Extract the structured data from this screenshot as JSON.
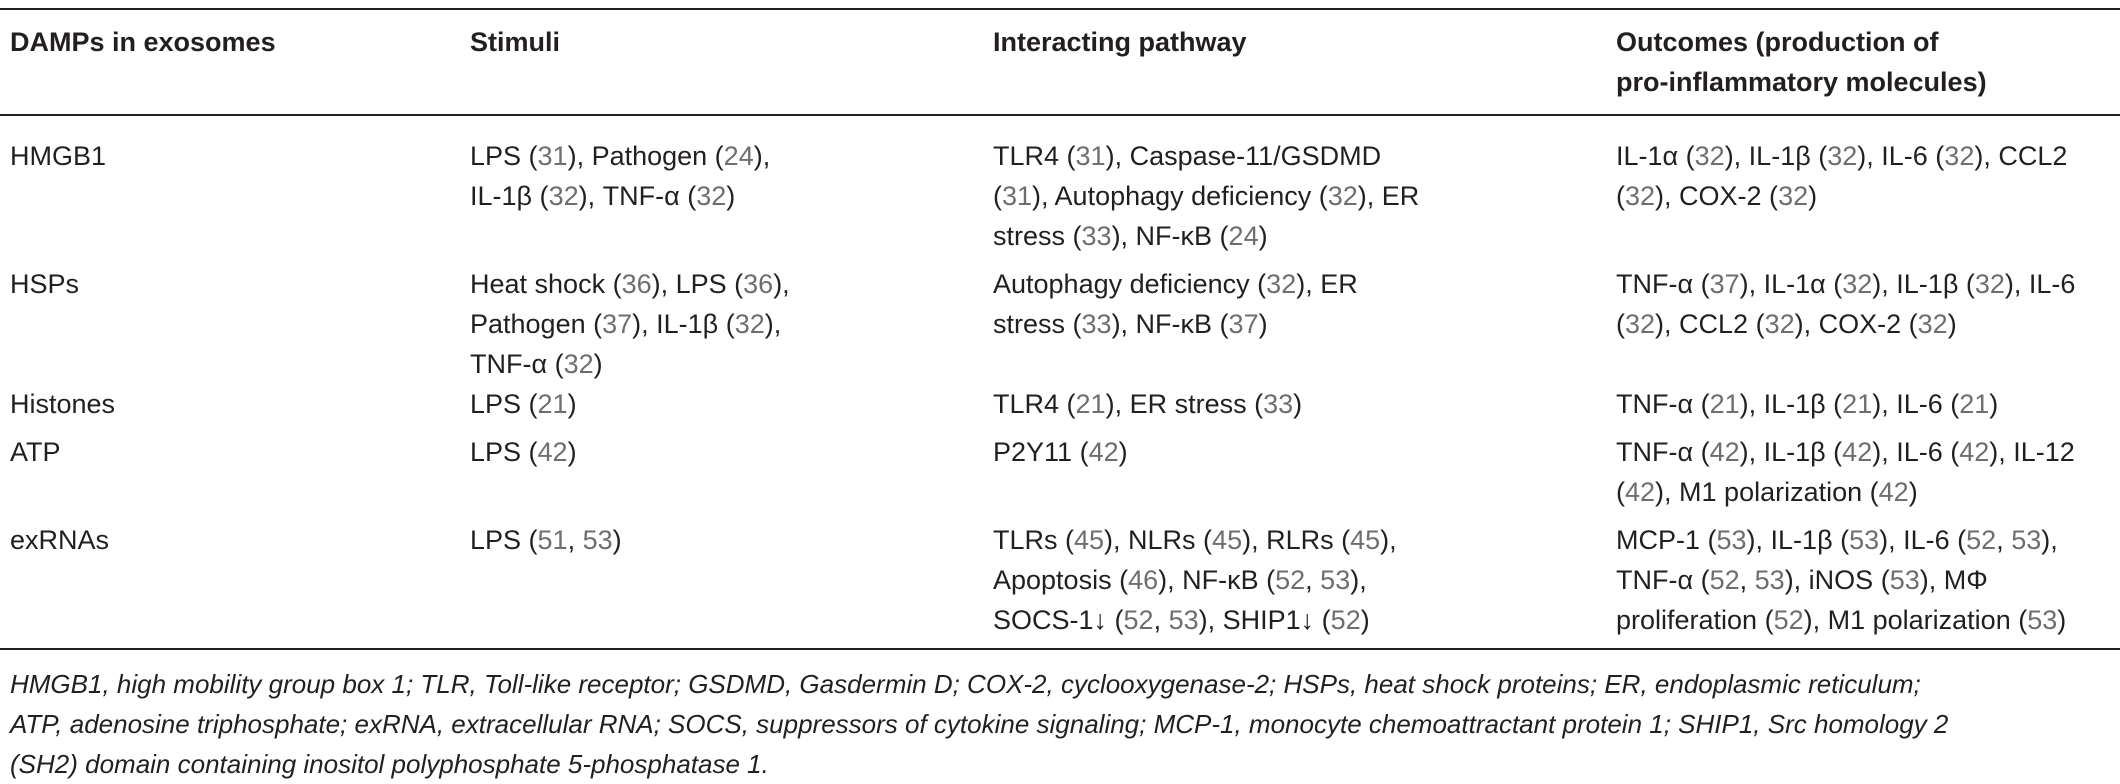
{
  "headers": {
    "col1": "DAMPs in exosomes",
    "col2": "Stimuli",
    "col3": "Interacting pathway",
    "col4_line1": "Outcomes (production of",
    "col4_line2": "pro-inflammatory molecules)"
  },
  "rows": [
    {
      "damp": "HMGB1",
      "stimuli": [
        [
          {
            "t": "LPS ("
          },
          {
            "r": "31"
          },
          {
            "t": "), Pathogen ("
          },
          {
            "r": "24"
          },
          {
            "t": "),"
          }
        ],
        [
          {
            "t": "IL-1β ("
          },
          {
            "r": "32"
          },
          {
            "t": "), TNF-α ("
          },
          {
            "r": "32"
          },
          {
            "t": ")"
          }
        ]
      ],
      "pathway": [
        [
          {
            "t": "TLR4 ("
          },
          {
            "r": "31"
          },
          {
            "t": "), Caspase-11/GSDMD"
          }
        ],
        [
          {
            "t": "("
          },
          {
            "r": "31"
          },
          {
            "t": "), Autophagy deficiency ("
          },
          {
            "r": "32"
          },
          {
            "t": "), ER"
          }
        ],
        [
          {
            "t": "stress ("
          },
          {
            "r": "33"
          },
          {
            "t": "), NF-κB ("
          },
          {
            "r": "24"
          },
          {
            "t": ")"
          }
        ]
      ],
      "outcomes": [
        [
          {
            "t": "IL-1α ("
          },
          {
            "r": "32"
          },
          {
            "t": "), IL-1β ("
          },
          {
            "r": "32"
          },
          {
            "t": "), IL-6 ("
          },
          {
            "r": "32"
          },
          {
            "t": "), CCL2"
          }
        ],
        [
          {
            "t": "("
          },
          {
            "r": "32"
          },
          {
            "t": "), COX-2 ("
          },
          {
            "r": "32"
          },
          {
            "t": ")"
          }
        ]
      ]
    },
    {
      "damp": "HSPs",
      "stimuli": [
        [
          {
            "t": "Heat shock ("
          },
          {
            "r": "36"
          },
          {
            "t": "), LPS ("
          },
          {
            "r": "36"
          },
          {
            "t": "),"
          }
        ],
        [
          {
            "t": "Pathogen ("
          },
          {
            "r": "37"
          },
          {
            "t": "), IL-1β ("
          },
          {
            "r": "32"
          },
          {
            "t": "),"
          }
        ],
        [
          {
            "t": "TNF-α ("
          },
          {
            "r": "32"
          },
          {
            "t": ")"
          }
        ]
      ],
      "pathway": [
        [
          {
            "t": "Autophagy deficiency ("
          },
          {
            "r": "32"
          },
          {
            "t": "), ER"
          }
        ],
        [
          {
            "t": "stress ("
          },
          {
            "r": "33"
          },
          {
            "t": "), NF-κB ("
          },
          {
            "r": "37"
          },
          {
            "t": ")"
          }
        ]
      ],
      "outcomes": [
        [
          {
            "t": "TNF-α ("
          },
          {
            "r": "37"
          },
          {
            "t": "), IL-1α ("
          },
          {
            "r": "32"
          },
          {
            "t": "), IL-1β ("
          },
          {
            "r": "32"
          },
          {
            "t": "), IL-6"
          }
        ],
        [
          {
            "t": "("
          },
          {
            "r": "32"
          },
          {
            "t": "), CCL2 ("
          },
          {
            "r": "32"
          },
          {
            "t": "), COX-2 ("
          },
          {
            "r": "32"
          },
          {
            "t": ")"
          }
        ]
      ]
    },
    {
      "damp": "Histones",
      "stimuli": [
        [
          {
            "t": "LPS ("
          },
          {
            "r": "21"
          },
          {
            "t": ")"
          }
        ]
      ],
      "pathway": [
        [
          {
            "t": "TLR4 ("
          },
          {
            "r": "21"
          },
          {
            "t": "), ER stress ("
          },
          {
            "r": "33"
          },
          {
            "t": ")"
          }
        ]
      ],
      "outcomes": [
        [
          {
            "t": "TNF-α ("
          },
          {
            "r": "21"
          },
          {
            "t": "), IL-1β ("
          },
          {
            "r": "21"
          },
          {
            "t": "), IL-6 ("
          },
          {
            "r": "21"
          },
          {
            "t": ")"
          }
        ]
      ]
    },
    {
      "damp": "ATP",
      "stimuli": [
        [
          {
            "t": "LPS ("
          },
          {
            "r": "42"
          },
          {
            "t": ")"
          }
        ]
      ],
      "pathway": [
        [
          {
            "t": "P2Y11 ("
          },
          {
            "r": "42"
          },
          {
            "t": ")"
          }
        ]
      ],
      "outcomes": [
        [
          {
            "t": "TNF-α ("
          },
          {
            "r": "42"
          },
          {
            "t": "), IL-1β ("
          },
          {
            "r": "42"
          },
          {
            "t": "), IL-6 ("
          },
          {
            "r": "42"
          },
          {
            "t": "), IL-12"
          }
        ],
        [
          {
            "t": "("
          },
          {
            "r": "42"
          },
          {
            "t": "), M1 polarization ("
          },
          {
            "r": "42"
          },
          {
            "t": ")"
          }
        ]
      ]
    },
    {
      "damp": "exRNAs",
      "stimuli": [
        [
          {
            "t": "LPS ("
          },
          {
            "r": "51"
          },
          {
            "t": ", "
          },
          {
            "r": "53"
          },
          {
            "t": ")"
          }
        ]
      ],
      "pathway": [
        [
          {
            "t": "TLRs ("
          },
          {
            "r": "45"
          },
          {
            "t": "), NLRs ("
          },
          {
            "r": "45"
          },
          {
            "t": "), RLRs ("
          },
          {
            "r": "45"
          },
          {
            "t": "),"
          }
        ],
        [
          {
            "t": "Apoptosis ("
          },
          {
            "r": "46"
          },
          {
            "t": "), NF-κB ("
          },
          {
            "r": "52"
          },
          {
            "t": ", "
          },
          {
            "r": "53"
          },
          {
            "t": "),"
          }
        ],
        [
          {
            "t": "SOCS-1↓ ("
          },
          {
            "r": "52"
          },
          {
            "t": ", "
          },
          {
            "r": "53"
          },
          {
            "t": "), SHIP1↓ ("
          },
          {
            "r": "52"
          },
          {
            "t": ")"
          }
        ]
      ],
      "outcomes": [
        [
          {
            "t": "MCP-1 ("
          },
          {
            "r": "53"
          },
          {
            "t": "), IL-1β ("
          },
          {
            "r": "53"
          },
          {
            "t": "), IL-6 ("
          },
          {
            "r": "52"
          },
          {
            "t": ", "
          },
          {
            "r": "53"
          },
          {
            "t": "),"
          }
        ],
        [
          {
            "t": "TNF-α ("
          },
          {
            "r": "52"
          },
          {
            "t": ", "
          },
          {
            "r": "53"
          },
          {
            "t": "), iNOS ("
          },
          {
            "r": "53"
          },
          {
            "t": "), MΦ"
          }
        ],
        [
          {
            "t": "proliferation ("
          },
          {
            "r": "52"
          },
          {
            "t": "), M1 polarization ("
          },
          {
            "r": "53"
          },
          {
            "t": ")"
          }
        ]
      ]
    }
  ],
  "footnote": [
    "HMGB1, high mobility group box 1; TLR, Toll-like receptor; GSDMD, Gasdermin D; COX-2, cyclooxygenase-2; HSPs, heat shock proteins; ER, endoplasmic reticulum;",
    "ATP, adenosine triphosphate; exRNA, extracellular RNA; SOCS, suppressors of cytokine signaling; MCP-1, monocyte chemoattractant protein 1; SHIP1, Src homology 2",
    "(SH2) domain containing inositol polyphosphate 5-phosphatase 1."
  ],
  "colors": {
    "text": "#231f20",
    "reference": "#6d6e71"
  }
}
